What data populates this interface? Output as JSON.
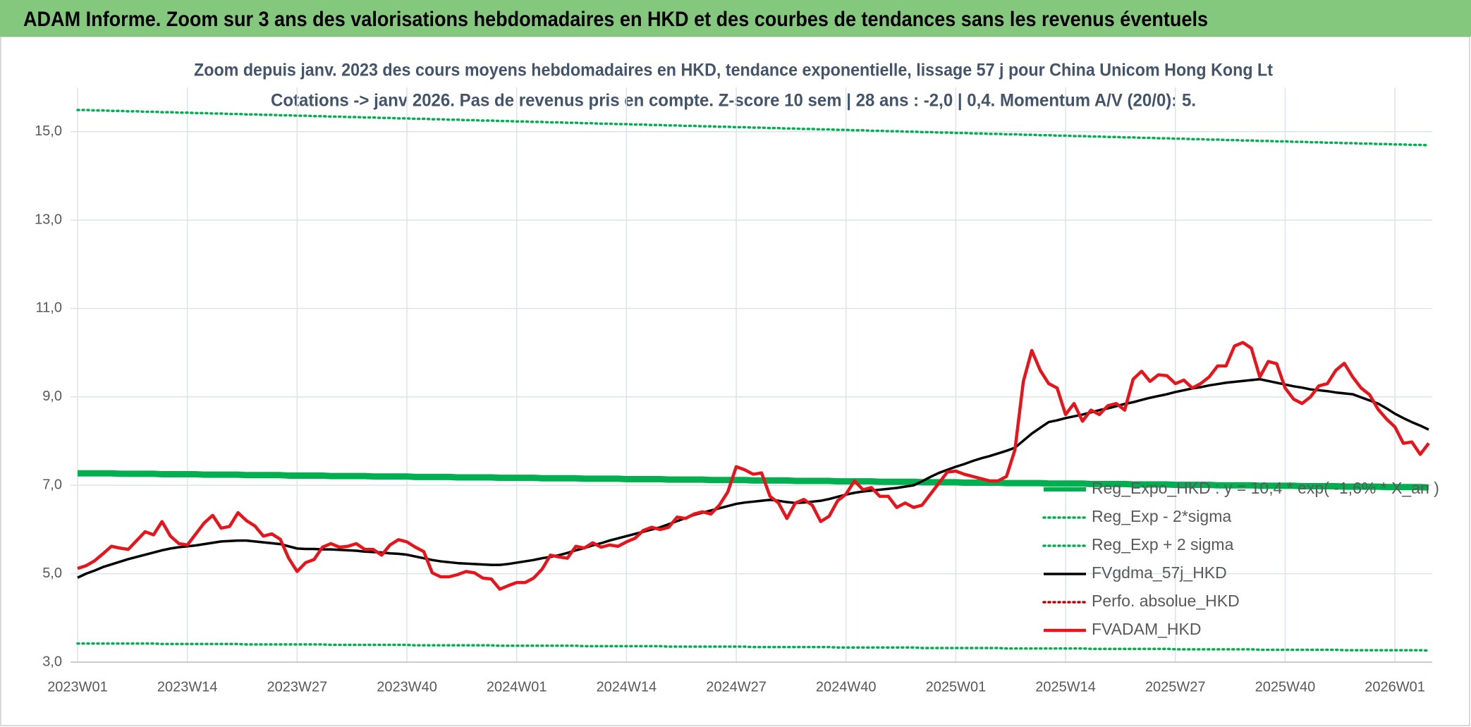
{
  "chart_data": {
    "type": "line",
    "title": "ADAM Informe. Zoom sur 3 ans des valorisations hebdomadaires en HKD et des courbes de tendances sans les revenus éventuels",
    "subtitle": [
      "Zoom depuis janv. 2023 des cours moyens hebdomadaires en HKD, tendance exponentielle, lissage 57 j pour China Unicom Hong Kong Lt",
      "Cotations -> janv 2026. Pas de revenus pris en compte. Z-score 10 sem | 28 ans : -2,0 | 0,4. Momentum A/V (20/0): 5."
    ],
    "categories": [
      "2023W01",
      null,
      null,
      null,
      null,
      null,
      null,
      null,
      null,
      null,
      null,
      null,
      null,
      "2023W14",
      null,
      null,
      null,
      null,
      null,
      null,
      null,
      null,
      null,
      null,
      null,
      null,
      "2023W27",
      null,
      null,
      null,
      null,
      null,
      null,
      null,
      null,
      null,
      null,
      null,
      null,
      "2023W40",
      null,
      null,
      null,
      null,
      null,
      null,
      null,
      null,
      null,
      null,
      null,
      null,
      "2024W01",
      null,
      null,
      null,
      null,
      null,
      null,
      null,
      null,
      null,
      null,
      null,
      null,
      "2024W14",
      null,
      null,
      null,
      null,
      null,
      null,
      null,
      null,
      null,
      null,
      null,
      null,
      "2024W27",
      null,
      null,
      null,
      null,
      null,
      null,
      null,
      null,
      null,
      null,
      null,
      null,
      "2024W40",
      null,
      null,
      null,
      null,
      null,
      null,
      null,
      null,
      null,
      null,
      null,
      null,
      "2025W01",
      null,
      null,
      null,
      null,
      null,
      null,
      null,
      null,
      null,
      null,
      null,
      null,
      "2025W14",
      null,
      null,
      null,
      null,
      null,
      null,
      null,
      null,
      null,
      null,
      null,
      null,
      "2025W27",
      null,
      null,
      null,
      null,
      null,
      null,
      null,
      null,
      null,
      null,
      null,
      null,
      "2025W40",
      null,
      null,
      null,
      null,
      null,
      null,
      null,
      null,
      null,
      null,
      null,
      null,
      "2026W01",
      null,
      null,
      null,
      null
    ],
    "ylim": [
      3,
      16
    ],
    "yticks": [
      {
        "value": 3,
        "label": "3,0"
      },
      {
        "value": 5,
        "label": "5,0"
      },
      {
        "value": 7,
        "label": "7,0"
      },
      {
        "value": 9,
        "label": "9,0"
      },
      {
        "value": 11,
        "label": "11,0"
      },
      {
        "value": 13,
        "label": "13,0"
      },
      {
        "value": 15,
        "label": "15,0"
      }
    ],
    "grid": true,
    "legend": "right",
    "series": [
      {
        "name": "Reg_Expo_HKD : y = 10,4 * exp( -1,6% * X_an )",
        "color": "#00b050",
        "style": "solid",
        "width": 9,
        "values": [
          7.27,
          7.27,
          7.27,
          7.27,
          7.27,
          7.26,
          7.26,
          7.26,
          7.26,
          7.26,
          7.25,
          7.25,
          7.25,
          7.25,
          7.25,
          7.24,
          7.24,
          7.24,
          7.24,
          7.24,
          7.23,
          7.23,
          7.23,
          7.23,
          7.23,
          7.22,
          7.22,
          7.22,
          7.22,
          7.22,
          7.21,
          7.21,
          7.21,
          7.21,
          7.21,
          7.2,
          7.2,
          7.2,
          7.2,
          7.2,
          7.19,
          7.19,
          7.19,
          7.19,
          7.19,
          7.18,
          7.18,
          7.18,
          7.18,
          7.18,
          7.17,
          7.17,
          7.17,
          7.17,
          7.17,
          7.16,
          7.16,
          7.16,
          7.16,
          7.16,
          7.15,
          7.15,
          7.15,
          7.15,
          7.15,
          7.14,
          7.14,
          7.14,
          7.14,
          7.14,
          7.13,
          7.13,
          7.13,
          7.13,
          7.13,
          7.12,
          7.12,
          7.12,
          7.12,
          7.12,
          7.11,
          7.11,
          7.11,
          7.11,
          7.11,
          7.1,
          7.1,
          7.1,
          7.1,
          7.1,
          7.09,
          7.09,
          7.09,
          7.09,
          7.09,
          7.08,
          7.08,
          7.08,
          7.08,
          7.08,
          7.07,
          7.07,
          7.07,
          7.07,
          7.07,
          7.06,
          7.06,
          7.06,
          7.06,
          7.06,
          7.05,
          7.05,
          7.05,
          7.05,
          7.05,
          7.04,
          7.04,
          7.04,
          7.04,
          7.04,
          7.03,
          7.03,
          7.03,
          7.03,
          7.03,
          7.02,
          7.02,
          7.02,
          7.02,
          7.02,
          7.01,
          7.01,
          7.01,
          7.01,
          7.01,
          7,
          7,
          7,
          7,
          7,
          6.99,
          6.99,
          6.99,
          6.99,
          6.99,
          6.98,
          6.98,
          6.98,
          6.98,
          6.98,
          6.97,
          6.97,
          6.97,
          6.97,
          6.97,
          6.96,
          6.96,
          6.96,
          6.96,
          6.96,
          6.95
        ]
      },
      {
        "name": "Reg_Exp - 2*sigma",
        "color": "#00b050",
        "style": "dotted",
        "width": 3.5,
        "values": [
          3.42,
          3.42,
          3.42,
          3.42,
          3.42,
          3.42,
          3.42,
          3.42,
          3.42,
          3.42,
          3.41,
          3.41,
          3.41,
          3.41,
          3.41,
          3.41,
          3.41,
          3.41,
          3.41,
          3.41,
          3.4,
          3.4,
          3.4,
          3.4,
          3.4,
          3.4,
          3.4,
          3.4,
          3.4,
          3.4,
          3.39,
          3.39,
          3.39,
          3.39,
          3.39,
          3.39,
          3.39,
          3.39,
          3.39,
          3.39,
          3.38,
          3.38,
          3.38,
          3.38,
          3.38,
          3.38,
          3.38,
          3.38,
          3.38,
          3.38,
          3.37,
          3.37,
          3.37,
          3.37,
          3.37,
          3.37,
          3.37,
          3.37,
          3.37,
          3.37,
          3.36,
          3.36,
          3.36,
          3.36,
          3.36,
          3.36,
          3.36,
          3.36,
          3.36,
          3.36,
          3.35,
          3.35,
          3.35,
          3.35,
          3.35,
          3.35,
          3.35,
          3.35,
          3.35,
          3.35,
          3.34,
          3.34,
          3.34,
          3.34,
          3.34,
          3.34,
          3.34,
          3.34,
          3.34,
          3.34,
          3.33,
          3.33,
          3.33,
          3.33,
          3.33,
          3.33,
          3.33,
          3.33,
          3.33,
          3.33,
          3.32,
          3.32,
          3.32,
          3.32,
          3.32,
          3.32,
          3.32,
          3.32,
          3.32,
          3.32,
          3.31,
          3.31,
          3.31,
          3.31,
          3.31,
          3.31,
          3.31,
          3.31,
          3.31,
          3.31,
          3.3,
          3.3,
          3.3,
          3.3,
          3.3,
          3.3,
          3.3,
          3.3,
          3.3,
          3.3,
          3.29,
          3.29,
          3.29,
          3.29,
          3.29,
          3.29,
          3.29,
          3.29,
          3.29,
          3.29,
          3.28,
          3.28,
          3.28,
          3.28,
          3.28,
          3.28,
          3.28,
          3.28,
          3.28,
          3.28,
          3.27,
          3.27,
          3.27,
          3.27,
          3.27,
          3.27,
          3.27,
          3.27,
          3.27,
          3.27,
          3.26
        ]
      },
      {
        "name": "Reg_Exp + 2 sigma",
        "color": "#00b050",
        "style": "dotted",
        "width": 3.5,
        "values": [
          15.49,
          15.49,
          15.48,
          15.48,
          15.47,
          15.47,
          15.46,
          15.46,
          15.45,
          15.45,
          15.44,
          15.44,
          15.43,
          15.43,
          15.42,
          15.42,
          15.41,
          15.41,
          15.4,
          15.4,
          15.39,
          15.39,
          15.38,
          15.38,
          15.37,
          15.37,
          15.36,
          15.36,
          15.35,
          15.35,
          15.34,
          15.34,
          15.33,
          15.33,
          15.32,
          15.32,
          15.31,
          15.31,
          15.3,
          15.3,
          15.29,
          15.29,
          15.28,
          15.28,
          15.27,
          15.27,
          15.26,
          15.26,
          15.25,
          15.25,
          15.24,
          15.24,
          15.23,
          15.23,
          15.22,
          15.22,
          15.21,
          15.21,
          15.2,
          15.2,
          15.19,
          15.19,
          15.18,
          15.18,
          15.17,
          15.17,
          15.16,
          15.16,
          15.15,
          15.15,
          15.14,
          15.14,
          15.13,
          15.13,
          15.12,
          15.12,
          15.11,
          15.11,
          15.1,
          15.1,
          15.09,
          15.09,
          15.08,
          15.08,
          15.07,
          15.07,
          15.06,
          15.06,
          15.05,
          15.05,
          15.04,
          15.04,
          15.03,
          15.03,
          15.02,
          15.02,
          15.01,
          15.01,
          15,
          15,
          14.99,
          14.99,
          14.98,
          14.98,
          14.97,
          14.97,
          14.96,
          14.96,
          14.95,
          14.95,
          14.94,
          14.94,
          14.93,
          14.93,
          14.92,
          14.92,
          14.91,
          14.91,
          14.9,
          14.9,
          14.89,
          14.89,
          14.88,
          14.88,
          14.87,
          14.87,
          14.86,
          14.86,
          14.85,
          14.85,
          14.84,
          14.84,
          14.83,
          14.83,
          14.82,
          14.82,
          14.81,
          14.81,
          14.8,
          14.8,
          14.79,
          14.79,
          14.78,
          14.78,
          14.77,
          14.77,
          14.76,
          14.76,
          14.75,
          14.75,
          14.74,
          14.74,
          14.73,
          14.73,
          14.72,
          14.72,
          14.71,
          14.71,
          14.7,
          14.7,
          14.69
        ]
      },
      {
        "name": "FVgdma_57j_HKD",
        "color": "#000000",
        "style": "solid",
        "width": 3.5,
        "values": [
          4.91,
          5.0,
          5.07,
          5.15,
          5.21,
          5.27,
          5.33,
          5.38,
          5.43,
          5.48,
          5.53,
          5.57,
          5.6,
          5.62,
          5.64,
          5.67,
          5.7,
          5.73,
          5.74,
          5.75,
          5.75,
          5.73,
          5.71,
          5.69,
          5.67,
          5.62,
          5.57,
          5.56,
          5.56,
          5.55,
          5.55,
          5.54,
          5.53,
          5.52,
          5.5,
          5.49,
          5.48,
          5.46,
          5.45,
          5.43,
          5.39,
          5.35,
          5.31,
          5.28,
          5.26,
          5.24,
          5.23,
          5.22,
          5.21,
          5.2,
          5.2,
          5.22,
          5.25,
          5.28,
          5.31,
          5.35,
          5.38,
          5.42,
          5.47,
          5.53,
          5.58,
          5.64,
          5.69,
          5.75,
          5.8,
          5.85,
          5.9,
          5.95,
          6.0,
          6.05,
          6.12,
          6.19,
          6.26,
          6.33,
          6.38,
          6.43,
          6.48,
          6.53,
          6.58,
          6.61,
          6.63,
          6.65,
          6.67,
          6.65,
          6.62,
          6.6,
          6.61,
          6.63,
          6.65,
          6.69,
          6.74,
          6.79,
          6.83,
          6.86,
          6.88,
          6.9,
          6.92,
          6.94,
          6.97,
          7.0,
          7.09,
          7.19,
          7.28,
          7.35,
          7.42,
          7.48,
          7.55,
          7.61,
          7.66,
          7.72,
          7.78,
          7.85,
          8.01,
          8.17,
          8.3,
          8.43,
          8.47,
          8.52,
          8.56,
          8.6,
          8.65,
          8.7,
          8.74,
          8.79,
          8.84,
          8.88,
          8.93,
          8.98,
          9.02,
          9.06,
          9.11,
          9.15,
          9.19,
          9.22,
          9.26,
          9.29,
          9.32,
          9.34,
          9.36,
          9.38,
          9.4,
          9.36,
          9.32,
          9.28,
          9.24,
          9.21,
          9.17,
          9.15,
          9.13,
          9.1,
          9.08,
          9.06,
          8.99,
          8.92,
          8.85,
          8.74,
          8.62,
          8.52,
          8.43,
          8.35,
          8.26
        ]
      },
      {
        "name": "Perfo. absolue_HKD",
        "color": "#c00000",
        "style": "dotted",
        "width": 3,
        "values": [
          null,
          null,
          null,
          null,
          null,
          null,
          null,
          null,
          null,
          null,
          null,
          null,
          null,
          null,
          null,
          null,
          null,
          null,
          null,
          null,
          null,
          null,
          null,
          null,
          null,
          null,
          null,
          null,
          null,
          null,
          null,
          null,
          null,
          null,
          null,
          null,
          null,
          null,
          null,
          null,
          null,
          null,
          null,
          null,
          null,
          null,
          null,
          null,
          null,
          null,
          null,
          null,
          null,
          null,
          null,
          null,
          null,
          null,
          null,
          null,
          null,
          null,
          null,
          null,
          null,
          null,
          null,
          null,
          null,
          null,
          null,
          null,
          null,
          null,
          null,
          null,
          null,
          null,
          null,
          null,
          null,
          null,
          null,
          null,
          null,
          null,
          null,
          null,
          null,
          null,
          null,
          null,
          null,
          null,
          null,
          null,
          null,
          null,
          null,
          null,
          null,
          null,
          null,
          null,
          null,
          null,
          null,
          null,
          null,
          null,
          null,
          null,
          null,
          null,
          null,
          null,
          null,
          null,
          null,
          null,
          null,
          null,
          null,
          null,
          null,
          null,
          null,
          null,
          null,
          null,
          null,
          null,
          null,
          null,
          null,
          null,
          null,
          null,
          null,
          null,
          null,
          null,
          null,
          null,
          null,
          null,
          null,
          null,
          null,
          null,
          null,
          null,
          null,
          null,
          null,
          null,
          null,
          null,
          null,
          null,
          null
        ]
      },
      {
        "name": "FVADAM_HKD",
        "color": "#e8141c",
        "style": "solid",
        "width": 4.5,
        "values": [
          5.12,
          5.18,
          5.29,
          5.45,
          5.62,
          5.58,
          5.55,
          5.75,
          5.95,
          5.88,
          6.18,
          5.85,
          5.68,
          5.65,
          5.9,
          6.15,
          6.32,
          6.03,
          6.07,
          6.38,
          6.2,
          6.08,
          5.85,
          5.9,
          5.78,
          5.35,
          5.05,
          5.25,
          5.32,
          5.6,
          5.68,
          5.6,
          5.62,
          5.68,
          5.55,
          5.55,
          5.42,
          5.65,
          5.77,
          5.72,
          5.6,
          5.5,
          5.02,
          4.93,
          4.93,
          4.98,
          5.05,
          5.02,
          4.9,
          4.88,
          4.65,
          4.73,
          4.8,
          4.8,
          4.9,
          5.1,
          5.42,
          5.38,
          5.35,
          5.62,
          5.58,
          5.7,
          5.6,
          5.65,
          5.62,
          5.72,
          5.8,
          5.98,
          6.05,
          6.0,
          6.05,
          6.28,
          6.25,
          6.35,
          6.4,
          6.35,
          6.55,
          6.85,
          7.42,
          7.35,
          7.25,
          7.28,
          6.75,
          6.6,
          6.25,
          6.6,
          6.68,
          6.55,
          6.18,
          6.3,
          6.65,
          6.8,
          7.1,
          6.9,
          6.95,
          6.75,
          6.75,
          6.5,
          6.6,
          6.5,
          6.55,
          6.8,
          7.05,
          7.3,
          7.32,
          7.25,
          7.2,
          7.15,
          7.1,
          7.1,
          7.2,
          7.8,
          9.35,
          10.05,
          9.6,
          9.3,
          9.2,
          8.6,
          8.85,
          8.45,
          8.7,
          8.6,
          8.8,
          8.85,
          8.7,
          9.4,
          9.58,
          9.35,
          9.5,
          9.48,
          9.3,
          9.38,
          9.2,
          9.3,
          9.45,
          9.7,
          9.7,
          10.15,
          10.23,
          10.1,
          9.45,
          9.8,
          9.75,
          9.2,
          8.95,
          8.85,
          9.0,
          9.25,
          9.3,
          9.6,
          9.76,
          9.45,
          9.2,
          9.05,
          8.72,
          8.5,
          8.32,
          7.95,
          7.98,
          7.7,
          7.95
        ]
      }
    ]
  }
}
